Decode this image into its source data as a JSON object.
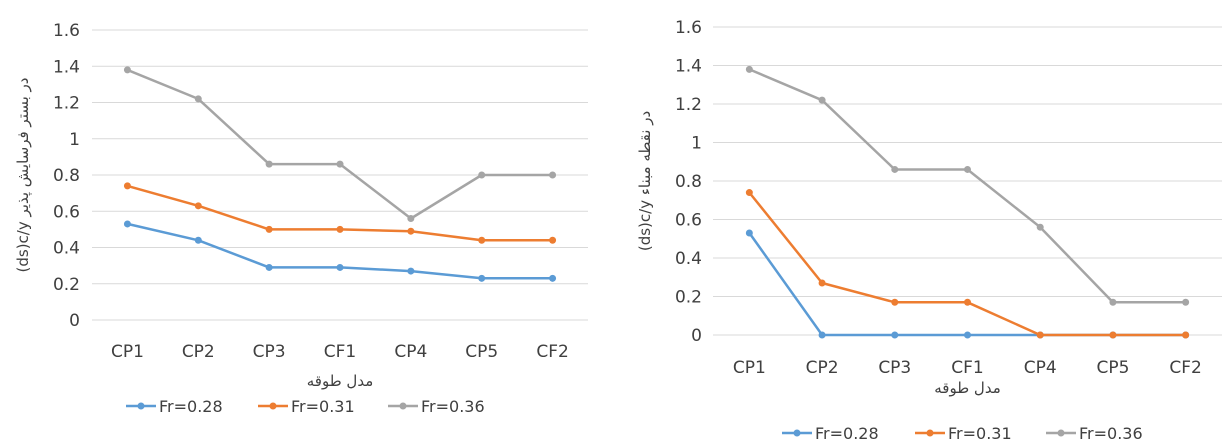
{
  "colors": {
    "s1": "#5b9bd5",
    "s2": "#ed7d31",
    "s3": "#a5a5a5",
    "grid": "#d9d9d9"
  },
  "chart_data": [
    {
      "type": "line",
      "categories": [
        "CP1",
        "CP2",
        "CP3",
        "CF1",
        "CP4",
        "CP5",
        "CF2"
      ],
      "ylim": [
        0,
        1.6
      ],
      "yticks": [
        "0",
        "0.2",
        "0.4",
        "0.6",
        "0.8",
        "1",
        "1.2",
        "1.4",
        "1.6"
      ],
      "xlabel": "مدل طوقه",
      "ylabel": "(ds)c/y  در بستر فرسایش پذیر",
      "grid": true,
      "legend": "bottom",
      "series": [
        {
          "name": "Fr=0.28",
          "values": [
            0.53,
            0.44,
            0.29,
            0.29,
            0.27,
            0.23,
            0.23
          ]
        },
        {
          "name": "Fr=0.31",
          "values": [
            0.74,
            0.63,
            0.5,
            0.5,
            0.49,
            0.44,
            0.44
          ]
        },
        {
          "name": "Fr=0.36",
          "values": [
            1.38,
            1.22,
            0.86,
            0.86,
            0.56,
            0.8,
            0.8
          ]
        }
      ]
    },
    {
      "type": "line",
      "categories": [
        "CP1",
        "CP2",
        "CP3",
        "CF1",
        "CP4",
        "CP5",
        "CF2"
      ],
      "ylim": [
        0,
        1.6
      ],
      "yticks": [
        "0",
        "0.2",
        "0.4",
        "0.6",
        "0.8",
        "1",
        "1.2",
        "1.4",
        "1.6"
      ],
      "xlabel": "مدل طوقه",
      "ylabel": "(ds)c/y  در نقطه مبناء",
      "grid": true,
      "legend": "bottom",
      "series": [
        {
          "name": "Fr=0.28",
          "values": [
            0.53,
            0.0,
            0.0,
            0.0,
            0.0,
            0.0,
            0.0
          ]
        },
        {
          "name": "Fr=0.31",
          "values": [
            0.74,
            0.27,
            0.17,
            0.17,
            0.0,
            0.0,
            0.0
          ]
        },
        {
          "name": "Fr=0.36",
          "values": [
            1.38,
            1.22,
            0.86,
            0.86,
            0.56,
            0.17,
            0.17
          ]
        }
      ]
    }
  ]
}
